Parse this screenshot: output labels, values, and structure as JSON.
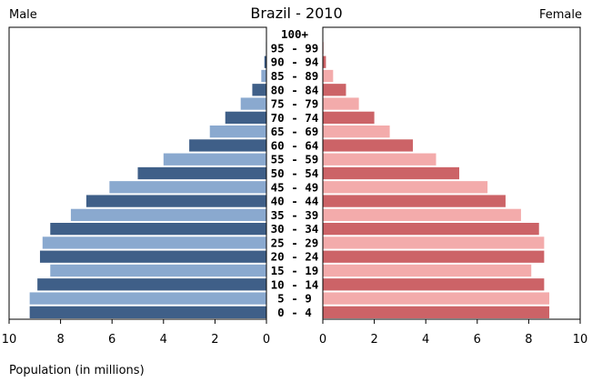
{
  "chart_data": {
    "type": "bar",
    "title": "Brazil - 2010",
    "male_label": "Male",
    "female_label": "Female",
    "xlabel": "Population (in millions)",
    "xlim": [
      0,
      10
    ],
    "xticks": [
      "10",
      "8",
      "6",
      "4",
      "2",
      "0"
    ],
    "xticks_female": [
      "0",
      "2",
      "4",
      "6",
      "8",
      "10"
    ],
    "categories": [
      "0 - 4",
      "5 - 9",
      "10 - 14",
      "15 - 19",
      "20 - 24",
      "25 - 29",
      "30 - 34",
      "35 - 39",
      "40 - 44",
      "45 - 49",
      "50 - 54",
      "55 - 59",
      "60 - 64",
      "65 - 69",
      "70 - 74",
      "75 - 79",
      "80 - 84",
      "85 - 89",
      "90 - 94",
      "95 - 99",
      "100+"
    ],
    "series": [
      {
        "name": "Male",
        "values": [
          9.2,
          9.2,
          8.9,
          8.4,
          8.8,
          8.7,
          8.4,
          7.6,
          7.0,
          6.1,
          5.0,
          4.0,
          3.0,
          2.2,
          1.6,
          1.0,
          0.55,
          0.2,
          0.08,
          0.02,
          0.01
        ]
      },
      {
        "name": "Female",
        "values": [
          8.8,
          8.8,
          8.6,
          8.1,
          8.6,
          8.6,
          8.4,
          7.7,
          7.1,
          6.4,
          5.3,
          4.4,
          3.5,
          2.6,
          2.0,
          1.4,
          0.9,
          0.4,
          0.12,
          0.03,
          0.01
        ]
      }
    ],
    "colors": {
      "male_dark": "#3f5f88",
      "male_light": "#8aa9cf",
      "female_dark": "#cc6367",
      "female_light": "#f3abab",
      "axis": "#000000"
    },
    "grid": false,
    "legend": "none"
  }
}
